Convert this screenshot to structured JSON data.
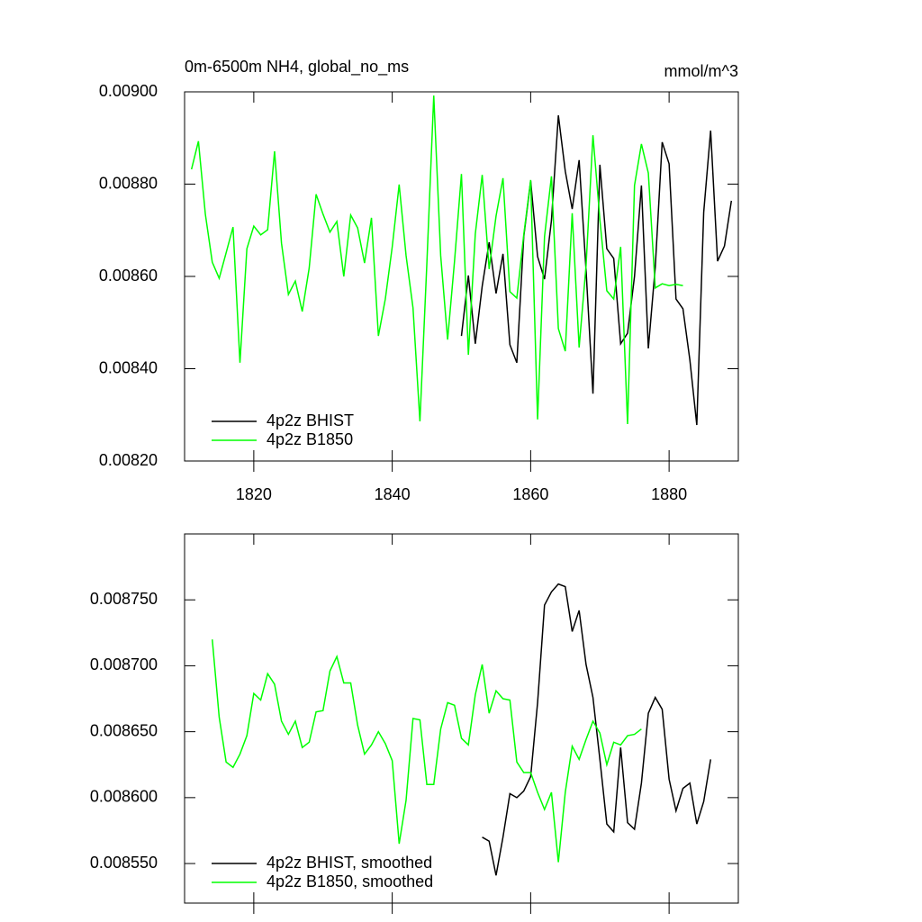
{
  "chart_data": [
    {
      "type": "line",
      "title": "0m-6500m NH4, global_no_ms",
      "units": "mmol/m^3",
      "xlim": [
        1810,
        1890
      ],
      "xticks": [
        1820,
        1840,
        1860,
        1880
      ],
      "xtick_labels": true,
      "ylim": [
        0.0082,
        0.009
      ],
      "yticks": [
        {
          "value": 0.0082,
          "label": "0.00820"
        },
        {
          "value": 0.0084,
          "label": "0.00840"
        },
        {
          "value": 0.0086,
          "label": "0.00860"
        },
        {
          "value": 0.0088,
          "label": "0.00880"
        },
        {
          "value": 0.009,
          "label": "0.00900"
        }
      ],
      "legend": "lower left",
      "series": [
        {
          "name": "4p2z BHIST",
          "color": "#000000",
          "x": [
            1850,
            1851,
            1852,
            1853,
            1854,
            1855,
            1856,
            1857,
            1858,
            1859,
            1860,
            1861,
            1862,
            1863,
            1864,
            1865,
            1866,
            1867,
            1868,
            1869,
            1870,
            1871,
            1872,
            1873,
            1874,
            1875,
            1876,
            1877,
            1878,
            1879,
            1880,
            1881,
            1882,
            1883,
            1884,
            1885,
            1886,
            1887,
            1888,
            1889
          ],
          "values": [
            0.008471,
            0.008602,
            0.008454,
            0.008579,
            0.008674,
            0.008563,
            0.008649,
            0.008452,
            0.008413,
            0.008686,
            0.008807,
            0.008643,
            0.008594,
            0.008721,
            0.008949,
            0.008828,
            0.008746,
            0.008852,
            0.008614,
            0.008346,
            0.008842,
            0.00866,
            0.008639,
            0.008454,
            0.008477,
            0.0086,
            0.008797,
            0.008444,
            0.00862,
            0.008891,
            0.008844,
            0.008551,
            0.00853,
            0.008419,
            0.008278,
            0.008739,
            0.008916,
            0.008633,
            0.008666,
            0.008764
          ]
        },
        {
          "name": "4p2z B1850",
          "color": "#00ff00",
          "x": [
            1811,
            1812,
            1813,
            1814,
            1815,
            1816,
            1817,
            1818,
            1819,
            1820,
            1821,
            1822,
            1823,
            1824,
            1825,
            1826,
            1827,
            1828,
            1829,
            1830,
            1831,
            1832,
            1833,
            1834,
            1835,
            1836,
            1837,
            1838,
            1839,
            1840,
            1841,
            1842,
            1843,
            1844,
            1845,
            1846,
            1847,
            1848,
            1849,
            1850,
            1851,
            1852,
            1853,
            1854,
            1855,
            1856,
            1857,
            1858,
            1859,
            1860,
            1861,
            1862,
            1863,
            1864,
            1865,
            1866,
            1867,
            1868,
            1869,
            1870,
            1871,
            1872,
            1873,
            1874,
            1875,
            1876,
            1877,
            1878,
            1879,
            1880,
            1881,
            1882
          ],
          "values": [
            0.008832,
            0.008893,
            0.008735,
            0.008631,
            0.008596,
            0.008651,
            0.008707,
            0.008413,
            0.00866,
            0.008709,
            0.00869,
            0.008701,
            0.008871,
            0.008672,
            0.008561,
            0.00859,
            0.008524,
            0.008618,
            0.008778,
            0.008735,
            0.008696,
            0.008719,
            0.0086,
            0.008733,
            0.008705,
            0.008629,
            0.008727,
            0.008471,
            0.008551,
            0.008664,
            0.008799,
            0.008645,
            0.008532,
            0.008286,
            0.008627,
            0.008992,
            0.008645,
            0.008463,
            0.008633,
            0.008822,
            0.00843,
            0.008692,
            0.00882,
            0.008616,
            0.008731,
            0.008813,
            0.008567,
            0.008553,
            0.00869,
            0.008809,
            0.00829,
            0.008686,
            0.008817,
            0.008487,
            0.008438,
            0.008737,
            0.008446,
            0.008623,
            0.008906,
            0.008723,
            0.008569,
            0.008551,
            0.008664,
            0.00828,
            0.008797,
            0.008887,
            0.008824,
            0.008575,
            0.008584,
            0.00858,
            0.008583,
            0.00858
          ]
        }
      ]
    },
    {
      "type": "line",
      "xlim": [
        1810,
        1890
      ],
      "xticks": [
        1820,
        1840,
        1860,
        1880
      ],
      "xtick_labels": false,
      "ylim": [
        0.00852,
        0.0088
      ],
      "yticks": [
        {
          "value": 0.00855,
          "label": "0.008550"
        },
        {
          "value": 0.0086,
          "label": "0.008600"
        },
        {
          "value": 0.00865,
          "label": "0.008650"
        },
        {
          "value": 0.0087,
          "label": "0.008700"
        },
        {
          "value": 0.00875,
          "label": "0.008750"
        }
      ],
      "legend": "lower left",
      "series": [
        {
          "name": "4p2z BHIST, smoothed",
          "color": "#000000",
          "x": [
            1853,
            1854,
            1855,
            1856,
            1857,
            1858,
            1859,
            1860,
            1861,
            1862,
            1863,
            1864,
            1865,
            1866,
            1867,
            1868,
            1869,
            1870,
            1871,
            1872,
            1873,
            1874,
            1875,
            1876,
            1877,
            1878,
            1879,
            1880,
            1881,
            1882,
            1883,
            1884,
            1885,
            1886
          ],
          "values": [
            0.00857,
            0.008567,
            0.008541,
            0.00857,
            0.008603,
            0.0086,
            0.008605,
            0.008616,
            0.008672,
            0.008746,
            0.008756,
            0.008762,
            0.00876,
            0.008726,
            0.008742,
            0.008701,
            0.008676,
            0.008629,
            0.00858,
            0.008574,
            0.008638,
            0.008581,
            0.008576,
            0.008611,
            0.008664,
            0.008676,
            0.008667,
            0.008614,
            0.00859,
            0.008607,
            0.008611,
            0.00858,
            0.008597,
            0.008629
          ]
        },
        {
          "name": "4p2z B1850, smoothed",
          "color": "#00ff00",
          "x": [
            1814,
            1815,
            1816,
            1817,
            1818,
            1819,
            1820,
            1821,
            1822,
            1823,
            1824,
            1825,
            1826,
            1827,
            1828,
            1829,
            1830,
            1831,
            1832,
            1833,
            1834,
            1835,
            1836,
            1837,
            1838,
            1839,
            1840,
            1841,
            1842,
            1843,
            1844,
            1845,
            1846,
            1847,
            1848,
            1849,
            1850,
            1851,
            1852,
            1853,
            1854,
            1855,
            1856,
            1857,
            1858,
            1859,
            1860,
            1861,
            1862,
            1863,
            1864,
            1865,
            1866,
            1867,
            1868,
            1869,
            1870,
            1871,
            1872,
            1873,
            1874,
            1875,
            1876
          ],
          "values": [
            0.00872,
            0.008661,
            0.008627,
            0.008623,
            0.008633,
            0.008647,
            0.008679,
            0.008674,
            0.008694,
            0.008686,
            0.008658,
            0.008648,
            0.008658,
            0.008638,
            0.008642,
            0.008665,
            0.008666,
            0.008696,
            0.008707,
            0.008687,
            0.008687,
            0.008655,
            0.008633,
            0.00864,
            0.00865,
            0.008641,
            0.008628,
            0.008565,
            0.008598,
            0.00866,
            0.008659,
            0.00861,
            0.00861,
            0.008652,
            0.008672,
            0.00867,
            0.008645,
            0.00864,
            0.008678,
            0.008701,
            0.008664,
            0.008681,
            0.008675,
            0.008674,
            0.008627,
            0.008619,
            0.008619,
            0.008604,
            0.008591,
            0.008604,
            0.008551,
            0.008604,
            0.008639,
            0.008629,
            0.008644,
            0.008658,
            0.008649,
            0.008625,
            0.008642,
            0.00864,
            0.008647,
            0.008648,
            0.008652
          ]
        }
      ]
    }
  ]
}
